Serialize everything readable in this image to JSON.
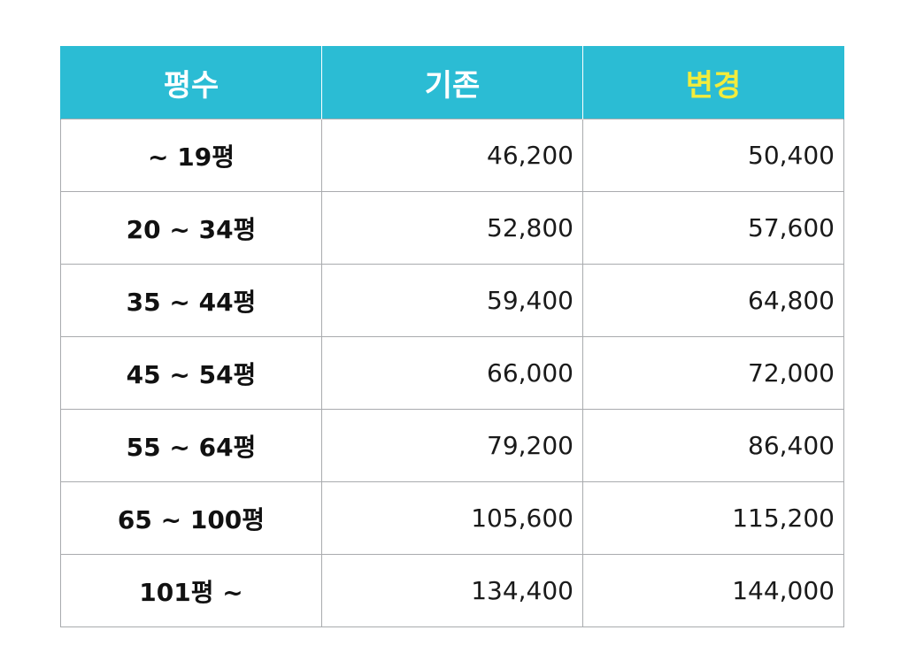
{
  "table": {
    "headers": {
      "size": "평수",
      "old": "기존",
      "new": "변경"
    },
    "rows": [
      {
        "size": "~ 19평",
        "old": "46,200",
        "new": "50,400"
      },
      {
        "size": "20 ~ 34평",
        "old": "52,800",
        "new": "57,600"
      },
      {
        "size": "35 ~ 44평",
        "old": "59,400",
        "new": "64,800"
      },
      {
        "size": "45 ~ 54평",
        "old": "66,000",
        "new": "72,000"
      },
      {
        "size": "55 ~ 64평",
        "old": "79,200",
        "new": "86,400"
      },
      {
        "size": "65 ~ 100평",
        "old": "105,600",
        "new": "115,200"
      },
      {
        "size": "101평 ~",
        "old": "134,400",
        "new": "144,000"
      }
    ],
    "colors": {
      "header_bg": "#2bbcd4",
      "header_text": "#ffffff",
      "header_highlight_text": "#f2ec3c",
      "grid": "#a9abae"
    }
  }
}
